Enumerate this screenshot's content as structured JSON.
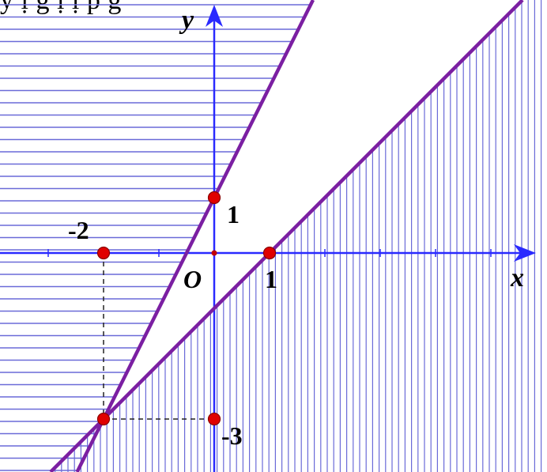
{
  "header_text": "y ị   g ị   ị p  g",
  "axes": {
    "x_label": "x",
    "y_label": "y",
    "origin_label": "O"
  },
  "tick_labels": {
    "neg_two": "-2",
    "one_x": "1",
    "one_y": "1",
    "neg_three": "-3"
  },
  "lines": [
    {
      "slope": 2,
      "intercept": 1
    },
    {
      "slope": 1,
      "intercept": -1
    }
  ],
  "points": [
    {
      "x": -2,
      "y": 0
    },
    {
      "x": 0,
      "y": 1
    },
    {
      "x": 1,
      "y": 0
    },
    {
      "x": 0,
      "y": -3
    },
    {
      "x": -2,
      "y": -3
    }
  ],
  "colors": {
    "axis": "#2a2aff",
    "line": "#7b1fa2",
    "hatch": "#6a6ad8",
    "point": "#e00000"
  }
}
